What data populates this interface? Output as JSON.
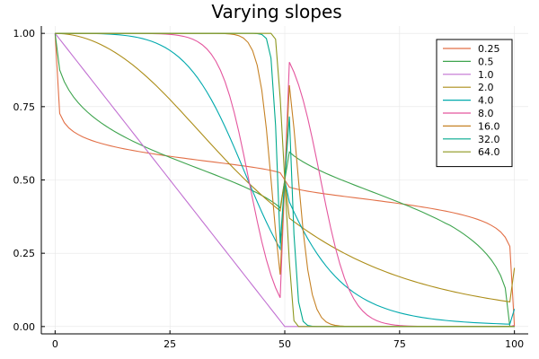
{
  "chart_data": {
    "type": "line",
    "title": "Varying slopes",
    "xlabel": "",
    "ylabel": "",
    "xlim": [
      -3,
      103
    ],
    "ylim": [
      -0.025,
      1.025
    ],
    "x_ticks": [
      0,
      25,
      50,
      75,
      100
    ],
    "x_tick_labels": [
      "0",
      "25",
      "50",
      "75",
      "100"
    ],
    "y_ticks": [
      0,
      0.25,
      0.5,
      0.75,
      1
    ],
    "y_tick_labels": [
      "0.00",
      "0.25",
      "0.50",
      "0.75",
      "1.00"
    ],
    "grid": true,
    "legend_position": "top-right",
    "x": [
      0,
      1,
      2,
      3,
      4,
      5,
      6,
      7,
      8,
      9,
      10,
      11,
      12,
      13,
      14,
      15,
      16,
      17,
      18,
      19,
      20,
      21,
      22,
      23,
      24,
      25,
      26,
      27,
      28,
      29,
      30,
      31,
      32,
      33,
      34,
      35,
      36,
      37,
      38,
      39,
      40,
      41,
      42,
      43,
      44,
      45,
      46,
      47,
      48,
      49,
      50,
      51,
      52,
      53,
      54,
      55,
      56,
      57,
      58,
      59,
      60,
      61,
      62,
      63,
      64,
      65,
      66,
      67,
      68,
      69,
      70,
      71,
      72,
      73,
      74,
      75,
      76,
      77,
      78,
      79,
      80,
      81,
      82,
      83,
      84,
      85,
      86,
      87,
      88,
      89,
      90,
      91,
      92,
      93,
      94,
      95,
      96,
      97,
      98,
      99,
      100
    ],
    "series": [
      {
        "name": "0.25",
        "color": "#e26f46",
        "values": [
          1.0,
          0.7266,
          0.6954,
          0.6774,
          0.6648,
          0.6551,
          0.6471,
          0.6404,
          0.6345,
          0.6294,
          0.6247,
          0.6205,
          0.6166,
          0.6129,
          0.6095,
          0.6063,
          0.6033,
          0.6004,
          0.5976,
          0.5949,
          0.5924,
          0.5899,
          0.5875,
          0.5852,
          0.5829,
          0.5807,
          0.5785,
          0.5764,
          0.5743,
          0.5722,
          0.5702,
          0.5681,
          0.5661,
          0.5641,
          0.5622,
          0.5602,
          0.5582,
          0.5562,
          0.5542,
          0.5521,
          0.55,
          0.5479,
          0.5457,
          0.5434,
          0.5409,
          0.5384,
          0.5356,
          0.5325,
          0.529,
          0.5247,
          0.5,
          0.4753,
          0.471,
          0.4675,
          0.4644,
          0.4616,
          0.4591,
          0.4566,
          0.4543,
          0.4521,
          0.45,
          0.4479,
          0.4458,
          0.4438,
          0.4418,
          0.4398,
          0.4378,
          0.4359,
          0.4339,
          0.4319,
          0.4298,
          0.4278,
          0.4257,
          0.4236,
          0.4215,
          0.4193,
          0.4171,
          0.4148,
          0.4125,
          0.4101,
          0.4076,
          0.4051,
          0.4024,
          0.3996,
          0.3967,
          0.3937,
          0.3905,
          0.3871,
          0.3834,
          0.3795,
          0.3753,
          0.3706,
          0.3655,
          0.3596,
          0.3529,
          0.3449,
          0.3352,
          0.3226,
          0.3046,
          0.2734,
          0.0
        ]
      },
      {
        "name": "0.5",
        "color": "#3ea44e",
        "values": [
          1.0,
          0.8751,
          0.8353,
          0.8065,
          0.7834,
          0.764,
          0.7472,
          0.7322,
          0.7187,
          0.7064,
          0.695,
          0.6844,
          0.6744,
          0.665,
          0.6561,
          0.6476,
          0.6395,
          0.6317,
          0.6242,
          0.6169,
          0.6099,
          0.603,
          0.5963,
          0.5897,
          0.5833,
          0.577,
          0.5707,
          0.5646,
          0.5585,
          0.5524,
          0.5464,
          0.5404,
          0.5344,
          0.5284,
          0.5224,
          0.5163,
          0.5101,
          0.5039,
          0.4976,
          0.4911,
          0.4845,
          0.4777,
          0.4706,
          0.4633,
          0.4555,
          0.4473,
          0.4384,
          0.4287,
          0.4178,
          0.4044,
          0.5,
          0.5956,
          0.5822,
          0.5713,
          0.5616,
          0.5527,
          0.5445,
          0.5367,
          0.5294,
          0.5223,
          0.5155,
          0.5089,
          0.5024,
          0.4961,
          0.4899,
          0.4837,
          0.4776,
          0.4716,
          0.4656,
          0.4596,
          0.4536,
          0.4476,
          0.4415,
          0.4354,
          0.4293,
          0.423,
          0.4167,
          0.4103,
          0.4037,
          0.397,
          0.3901,
          0.3831,
          0.3758,
          0.3683,
          0.3605,
          0.3524,
          0.345,
          0.3356,
          0.3256,
          0.315,
          0.3036,
          0.2913,
          0.2778,
          0.2628,
          0.2459,
          0.2264,
          0.2031,
          0.1735,
          0.1313,
          0.0,
          0.0
        ]
      },
      {
        "name": "1.0",
        "color": "#c271d2",
        "values": [
          1.0,
          0.98,
          0.96,
          0.94,
          0.92,
          0.9,
          0.88,
          0.86,
          0.84,
          0.82,
          0.8,
          0.78,
          0.76,
          0.74,
          0.72,
          0.7,
          0.68,
          0.66,
          0.64,
          0.62,
          0.6,
          0.58,
          0.56,
          0.54,
          0.52,
          0.5,
          0.48,
          0.46,
          0.44,
          0.42,
          0.4,
          0.38,
          0.36,
          0.34,
          0.32,
          0.3,
          0.28,
          0.26,
          0.24,
          0.22,
          0.2,
          0.18,
          0.16,
          0.14,
          0.12,
          0.1,
          0.08,
          0.06,
          0.04,
          0.02,
          0.0,
          0.0,
          0.0,
          0.0,
          0.0,
          0.0,
          0.0,
          0.0,
          0.0,
          0.0,
          0.0,
          0.0,
          0.0,
          0.0,
          0.0,
          0.0,
          0.0,
          0.0,
          0.0,
          0.0,
          0.0,
          0.0,
          0.0,
          0.0,
          0.0,
          0.0,
          0.0,
          0.0,
          0.0,
          0.0,
          0.0,
          0.0,
          0.0,
          0.0,
          0.0,
          0.0,
          0.0,
          0.0,
          0.0,
          0.0,
          0.0,
          0.0,
          0.0,
          0.0,
          0.0,
          0.0,
          0.0,
          0.0,
          0.0,
          0.0,
          0.0
        ]
      },
      {
        "name": "2.0",
        "color": "#ac8d18",
        "values": [
          1.0,
          0.9996,
          0.9983,
          0.9963,
          0.9936,
          0.9901,
          0.9859,
          0.9809,
          0.9752,
          0.9687,
          0.9615,
          0.9535,
          0.9449,
          0.9355,
          0.9254,
          0.9146,
          0.9032,
          0.8911,
          0.8784,
          0.865,
          0.8511,
          0.8366,
          0.8217,
          0.8062,
          0.7904,
          0.7742,
          0.7577,
          0.7409,
          0.7239,
          0.7068,
          0.6897,
          0.6725,
          0.6552,
          0.638,
          0.6209,
          0.6039,
          0.5871,
          0.5705,
          0.5541,
          0.538,
          0.5222,
          0.5066,
          0.4914,
          0.4765,
          0.462,
          0.4478,
          0.4339,
          0.4204,
          0.4073,
          0.3945,
          0.5,
          0.3698,
          0.358,
          0.3465,
          0.3353,
          0.3245,
          0.3141,
          0.3039,
          0.2941,
          0.2846,
          0.2754,
          0.2665,
          0.2579,
          0.2496,
          0.2416,
          0.2338,
          0.2263,
          0.2191,
          0.2121,
          0.2054,
          0.1989,
          0.1926,
          0.1866,
          0.1807,
          0.1751,
          0.1697,
          0.1645,
          0.1594,
          0.1546,
          0.1499,
          0.1454,
          0.141,
          0.1368,
          0.1328,
          0.1289,
          0.1251,
          0.1215,
          0.118,
          0.1146,
          0.1113,
          0.1082,
          0.1051,
          0.1022,
          0.0994,
          0.0966,
          0.094,
          0.0914,
          0.0889,
          0.0865,
          0.0842,
          0.2
        ]
      },
      {
        "name": "4.0",
        "color": "#00a9ad",
        "values": [
          1.0,
          1.0,
          1.0,
          1.0,
          1.0,
          0.9999,
          0.9998,
          0.9996,
          0.9994,
          0.9991,
          0.9986,
          0.998,
          0.9972,
          0.9962,
          0.9949,
          0.9933,
          0.9913,
          0.9889,
          0.9859,
          0.9823,
          0.978,
          0.9729,
          0.9668,
          0.9597,
          0.9514,
          0.9418,
          0.9307,
          0.918,
          0.9036,
          0.8873,
          0.869,
          0.8486,
          0.826,
          0.8012,
          0.7742,
          0.7451,
          0.714,
          0.681,
          0.6465,
          0.6107,
          0.5739,
          0.5366,
          0.4991,
          0.462,
          0.4256,
          0.3902,
          0.3562,
          0.3238,
          0.2932,
          0.2646,
          0.5,
          0.4249,
          0.3907,
          0.3584,
          0.328,
          0.2997,
          0.2734,
          0.2492,
          0.2268,
          0.2063,
          0.1876,
          0.1706,
          0.155,
          0.1409,
          0.1281,
          0.1165,
          0.106,
          0.0965,
          0.0879,
          0.0801,
          0.0731,
          0.0667,
          0.061,
          0.0558,
          0.0511,
          0.0468,
          0.043,
          0.0395,
          0.0363,
          0.0334,
          0.0308,
          0.0284,
          0.0263,
          0.0243,
          0.0225,
          0.0209,
          0.0194,
          0.018,
          0.0168,
          0.0156,
          0.0146,
          0.0136,
          0.0127,
          0.0119,
          0.0111,
          0.0104,
          0.0098,
          0.0092,
          0.0086,
          0.0081,
          0.06
        ]
      },
      {
        "name": "8.0",
        "color": "#e4569e",
        "values": [
          1.0,
          1.0,
          1.0,
          1.0,
          1.0,
          1.0,
          1.0,
          1.0,
          1.0,
          1.0,
          1.0,
          1.0,
          1.0,
          1.0,
          1.0,
          1.0,
          0.9999,
          0.9999,
          0.9998,
          0.9997,
          0.9995,
          0.9993,
          0.9989,
          0.9984,
          0.9976,
          0.9965,
          0.9949,
          0.9927,
          0.9897,
          0.9855,
          0.9798,
          0.972,
          0.9615,
          0.9475,
          0.929,
          0.9049,
          0.8739,
          0.8349,
          0.7869,
          0.7296,
          0.6636,
          0.5906,
          0.5133,
          0.435,
          0.3594,
          0.2895,
          0.2277,
          0.1752,
          0.1323,
          0.0983,
          0.5,
          0.9017,
          0.8677,
          0.8248,
          0.7723,
          0.7105,
          0.6406,
          0.565,
          0.4867,
          0.4094,
          0.3364,
          0.2704,
          0.2131,
          0.1651,
          0.1261,
          0.0951,
          0.071,
          0.0525,
          0.0385,
          0.028,
          0.0202,
          0.0145,
          0.0103,
          0.0073,
          0.0051,
          0.0035,
          0.0024,
          0.0016,
          0.0011,
          0.0007,
          0.0005,
          0.0003,
          0.0002,
          0.0001,
          0.0001,
          0.0,
          0.0,
          0.0,
          0.0,
          0.0,
          0.0,
          0.0,
          0.0,
          0.0,
          0.0,
          0.0,
          0.0,
          0.0,
          0.0,
          0.0,
          0.004
        ]
      },
      {
        "name": "16.0",
        "color": "#c68225",
        "values": [
          1.0,
          1.0,
          1.0,
          1.0,
          1.0,
          1.0,
          1.0,
          1.0,
          1.0,
          1.0,
          1.0,
          1.0,
          1.0,
          1.0,
          1.0,
          1.0,
          1.0,
          1.0,
          1.0,
          1.0,
          1.0,
          1.0,
          1.0,
          1.0,
          1.0,
          1.0,
          1.0,
          1.0,
          1.0,
          1.0,
          1.0,
          1.0,
          1.0,
          0.9999,
          0.9999,
          0.9998,
          0.9995,
          0.999,
          0.998,
          0.996,
          0.992,
          0.984,
          0.969,
          0.941,
          0.891,
          0.806,
          0.674,
          0.503,
          0.324,
          0.177,
          0.5,
          0.823,
          0.676,
          0.497,
          0.326,
          0.194,
          0.109,
          0.059,
          0.031,
          0.016,
          0.008,
          0.004,
          0.002,
          0.001,
          0.0005,
          0.0002,
          0.0001,
          0.0,
          0.0,
          0.0,
          0.0,
          0.0,
          0.0,
          0.0,
          0.0,
          0.0,
          0.0,
          0.0,
          0.0,
          0.0,
          0.0,
          0.0,
          0.0,
          0.0,
          0.0,
          0.0,
          0.0,
          0.0,
          0.0,
          0.0,
          0.0,
          0.0,
          0.0,
          0.0,
          0.0,
          0.0,
          0.0,
          0.0,
          0.0,
          0.0,
          0.0
        ]
      },
      {
        "name": "32.0",
        "color": "#00a98d",
        "values": [
          1.0,
          1.0,
          1.0,
          1.0,
          1.0,
          1.0,
          1.0,
          1.0,
          1.0,
          1.0,
          1.0,
          1.0,
          1.0,
          1.0,
          1.0,
          1.0,
          1.0,
          1.0,
          1.0,
          1.0,
          1.0,
          1.0,
          1.0,
          1.0,
          1.0,
          1.0,
          1.0,
          1.0,
          1.0,
          1.0,
          1.0,
          1.0,
          1.0,
          1.0,
          1.0,
          1.0,
          1.0,
          1.0,
          1.0,
          1.0,
          1.0,
          1.0,
          1.0,
          0.9999,
          0.9993,
          0.9964,
          0.9823,
          0.9154,
          0.6855,
          0.2834,
          0.5,
          0.7166,
          0.3145,
          0.0846,
          0.0177,
          0.0036,
          0.0007,
          0.0001,
          0.0,
          0.0,
          0.0,
          0.0,
          0.0,
          0.0,
          0.0,
          0.0,
          0.0,
          0.0,
          0.0,
          0.0,
          0.0,
          0.0,
          0.0,
          0.0,
          0.0,
          0.0,
          0.0,
          0.0,
          0.0,
          0.0,
          0.0,
          0.0,
          0.0,
          0.0,
          0.0,
          0.0,
          0.0,
          0.0,
          0.0,
          0.0,
          0.0,
          0.0,
          0.0,
          0.0,
          0.0,
          0.0,
          0.0,
          0.0,
          0.0,
          0.0,
          0.0
        ]
      },
      {
        "name": "64.0",
        "color": "#8e971e",
        "values": [
          1.0,
          1.0,
          1.0,
          1.0,
          1.0,
          1.0,
          1.0,
          1.0,
          1.0,
          1.0,
          1.0,
          1.0,
          1.0,
          1.0,
          1.0,
          1.0,
          1.0,
          1.0,
          1.0,
          1.0,
          1.0,
          1.0,
          1.0,
          1.0,
          1.0,
          1.0,
          1.0,
          1.0,
          1.0,
          1.0,
          1.0,
          1.0,
          1.0,
          1.0,
          1.0,
          1.0,
          1.0,
          1.0,
          1.0,
          1.0,
          1.0,
          1.0,
          1.0,
          1.0,
          1.0,
          1.0,
          1.0,
          0.9999,
          0.98,
          0.78,
          0.5,
          0.22,
          0.02,
          0.0001,
          0.0,
          0.0,
          0.0,
          0.0,
          0.0,
          0.0,
          0.0,
          0.0,
          0.0,
          0.0,
          0.0,
          0.0,
          0.0,
          0.0,
          0.0,
          0.0,
          0.0,
          0.0,
          0.0,
          0.0,
          0.0,
          0.0,
          0.0,
          0.0,
          0.0,
          0.0,
          0.0,
          0.0,
          0.0,
          0.0,
          0.0,
          0.0,
          0.0,
          0.0,
          0.0,
          0.0,
          0.0,
          0.0,
          0.0,
          0.0,
          0.0,
          0.0,
          0.0,
          0.0,
          0.0,
          0.0,
          0.0
        ]
      }
    ]
  }
}
